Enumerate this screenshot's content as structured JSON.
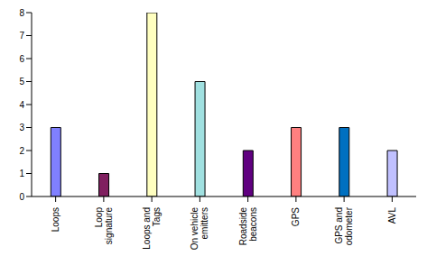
{
  "chart_data": {
    "type": "bar",
    "categories": [
      "Loops",
      "Loop signature",
      "Loops and Tags",
      "On vehicle emitters",
      "Roadside beacons",
      "GPS",
      "GPS and odometer",
      "AVL"
    ],
    "values": [
      3,
      1,
      8,
      5,
      2,
      3,
      3,
      2
    ],
    "colors": [
      "#8080ff",
      "#802060",
      "#ffffc0",
      "#a0e0e0",
      "#600080",
      "#ff8080",
      "#0070c0",
      "#c0c0ff"
    ],
    "ylim": [
      0,
      8
    ],
    "yticks": [
      0,
      1,
      2,
      3,
      4,
      5,
      6,
      7,
      8
    ],
    "grid": false
  }
}
